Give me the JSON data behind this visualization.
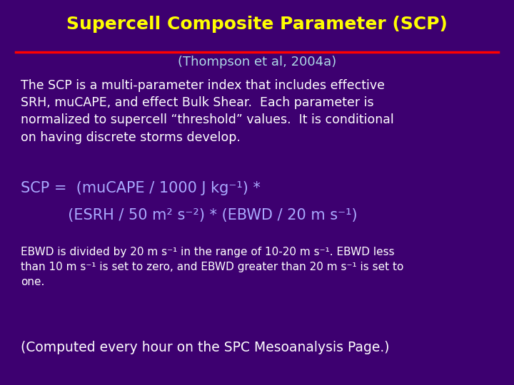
{
  "bg_color": "#3D0070",
  "title": "Supercell Composite Parameter (SCP)",
  "title_color": "#FFFF00",
  "title_fontsize": 18,
  "subtitle": "(Thompson et al, 2004a)",
  "subtitle_color": "#ADD8E6",
  "subtitle_fontsize": 13,
  "line_color": "#FF0000",
  "body_color": "#FFFFFF",
  "body_fontsize": 12.5,
  "body_text": "The SCP is a multi-parameter index that includes effective\nSRH, muCAPE, and effect Bulk Shear.  Each parameter is\nnormalized to supercell “threshold” values.  It is conditional\non having discrete storms develop.",
  "formula_line1": "SCP =  (muCAPE / 1000 J kg⁻¹) *",
  "formula_line2": "          (ESRH / 50 m² s⁻²) * (EBWD / 20 m s⁻¹)",
  "formula_color": "#AAAAFF",
  "formula_fontsize": 15,
  "note_text": "EBWD is divided by 20 m s⁻¹ in the range of 10-20 m s⁻¹. EBWD less\nthan 10 m s⁻¹ is set to zero, and EBWD greater than 20 m s⁻¹ is set to\none.",
  "note_color": "#FFFFFF",
  "note_fontsize": 11,
  "footer_text": "(Computed every hour on the SPC Mesoanalysis Page.)",
  "footer_color": "#FFFFFF",
  "footer_fontsize": 13.5
}
